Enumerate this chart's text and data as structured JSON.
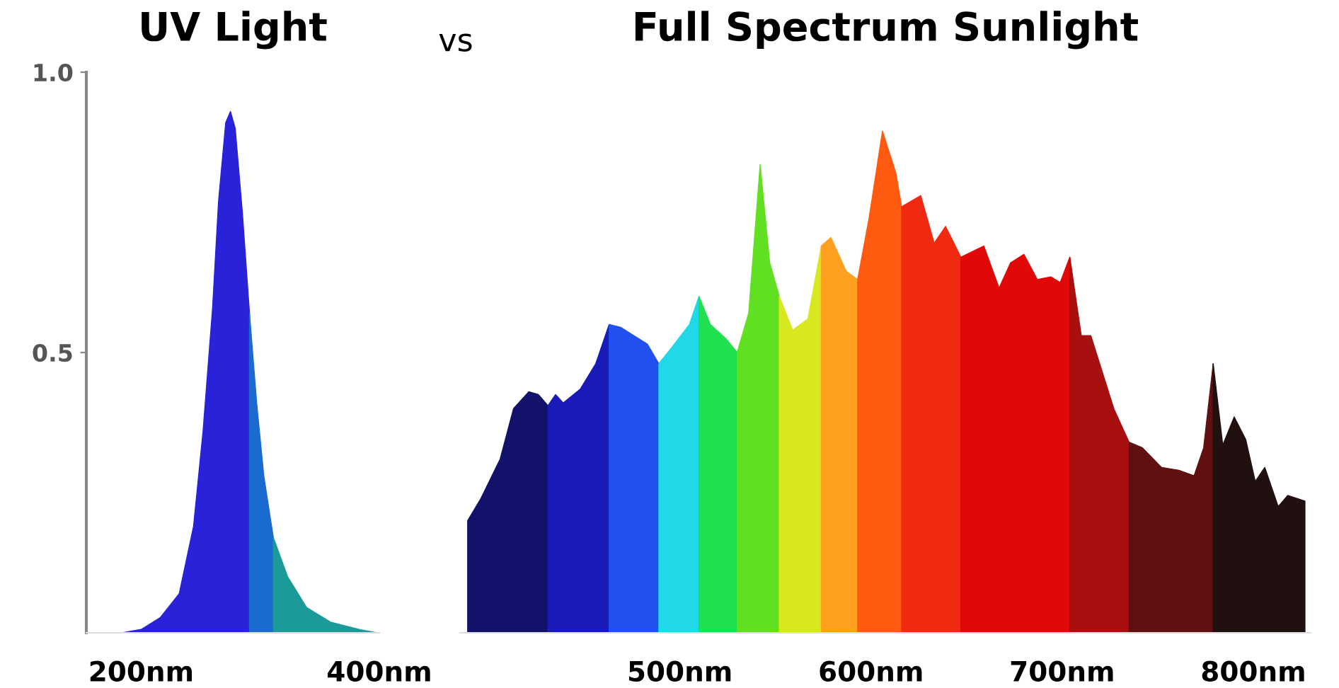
{
  "chart_data": [
    {
      "type": "area",
      "title": "UV Light",
      "annotations": [
        "vs"
      ],
      "series": [
        {
          "color": "#2a22d8",
          "x": [
            184,
            200,
            216,
            232,
            244,
            252,
            260,
            265,
            271,
            275,
            279,
            285,
            291
          ],
          "values": [
            0,
            0.006,
            0.027,
            0.07,
            0.19,
            0.36,
            0.58,
            0.77,
            0.91,
            0.93,
            0.9,
            0.75,
            0.57
          ]
        },
        {
          "color": "#1a6ad0",
          "x": [
            291,
            297,
            303,
            311
          ],
          "values": [
            0.57,
            0.41,
            0.28,
            0.17
          ]
        },
        {
          "color": "#1a9a98",
          "x": [
            311,
            323,
            339,
            359,
            383,
            398
          ],
          "values": [
            0.17,
            0.1,
            0.045,
            0.019,
            0.006,
            0
          ]
        }
      ],
      "xlim": [
        154,
        400
      ],
      "ylim": [
        0,
        1.0
      ],
      "xticks": [
        {
          "value": 200,
          "label": "200nm"
        },
        {
          "value": 400,
          "label": "400nm"
        }
      ],
      "yticks": [
        0.5,
        {
          "value": 1.0,
          "label": "1.0"
        }
      ]
    },
    {
      "type": "area",
      "title": "Full Spectrum Sunlight",
      "series": [
        {
          "color": "#12126a",
          "x": [
            389,
            396,
            406,
            413,
            421,
            426,
            431
          ],
          "values": [
            0.2,
            0.24,
            0.31,
            0.4,
            0.43,
            0.425,
            0.405
          ]
        },
        {
          "color": "#1a1ab8",
          "x": [
            431,
            435,
            439,
            448,
            456,
            463
          ],
          "values": [
            0.405,
            0.425,
            0.41,
            0.435,
            0.48,
            0.55
          ]
        },
        {
          "color": "#2050f0",
          "x": [
            463,
            469,
            476,
            483,
            489
          ],
          "values": [
            0.55,
            0.545,
            0.53,
            0.515,
            0.48
          ]
        },
        {
          "color": "#20d8e8",
          "x": [
            489,
            496,
            505,
            510
          ],
          "values": [
            0.48,
            0.51,
            0.55,
            0.6
          ]
        },
        {
          "color": "#20e050",
          "x": [
            510,
            516,
            524,
            530
          ],
          "values": [
            0.6,
            0.55,
            0.525,
            0.5
          ]
        },
        {
          "color": "#60e020",
          "x": [
            530,
            536,
            542,
            547,
            552
          ],
          "values": [
            0.5,
            0.57,
            0.835,
            0.66,
            0.6
          ]
        },
        {
          "color": "#d8e820",
          "x": [
            552,
            559,
            567,
            574
          ],
          "values": [
            0.6,
            0.54,
            0.56,
            0.69
          ]
        },
        {
          "color": "#ffa020",
          "x": [
            574,
            579,
            587,
            593
          ],
          "values": [
            0.69,
            0.705,
            0.645,
            0.63
          ]
        },
        {
          "color": "#ff5a10",
          "x": [
            593,
            599,
            606,
            613,
            616
          ],
          "values": [
            0.63,
            0.74,
            0.895,
            0.82,
            0.76
          ]
        },
        {
          "color": "#f02a10",
          "x": [
            616,
            626,
            633,
            639,
            647
          ],
          "values": [
            0.76,
            0.78,
            0.695,
            0.725,
            0.67
          ]
        },
        {
          "color": "#e00808",
          "x": [
            647,
            659,
            667,
            673,
            680,
            687,
            694,
            699,
            704
          ],
          "values": [
            0.67,
            0.69,
            0.615,
            0.66,
            0.675,
            0.63,
            0.635,
            0.625,
            0.67
          ]
        },
        {
          "color": "#a81010",
          "x": [
            704,
            710,
            715,
            727,
            735
          ],
          "values": [
            0.67,
            0.53,
            0.53,
            0.4,
            0.34
          ]
        },
        {
          "color": "#601010",
          "x": [
            735,
            742,
            752,
            761,
            769,
            774,
            779
          ],
          "values": [
            0.34,
            0.33,
            0.295,
            0.29,
            0.28,
            0.33,
            0.48
          ]
        },
        {
          "color": "#201010",
          "x": [
            779,
            784,
            790,
            796,
            801,
            806,
            813,
            818,
            827
          ],
          "values": [
            0.48,
            0.335,
            0.385,
            0.345,
            0.27,
            0.295,
            0.225,
            0.245,
            0.235
          ]
        }
      ],
      "xlim": [
        385,
        830
      ],
      "ylim": [
        0,
        1.0
      ],
      "tick_labels": "x",
      "xticks": [
        {
          "value": 500,
          "label": "500nm"
        },
        {
          "value": 600,
          "label": "600nm"
        },
        {
          "value": 700,
          "label": "700nm"
        },
        {
          "value": 800,
          "label": "800nm"
        }
      ]
    }
  ]
}
